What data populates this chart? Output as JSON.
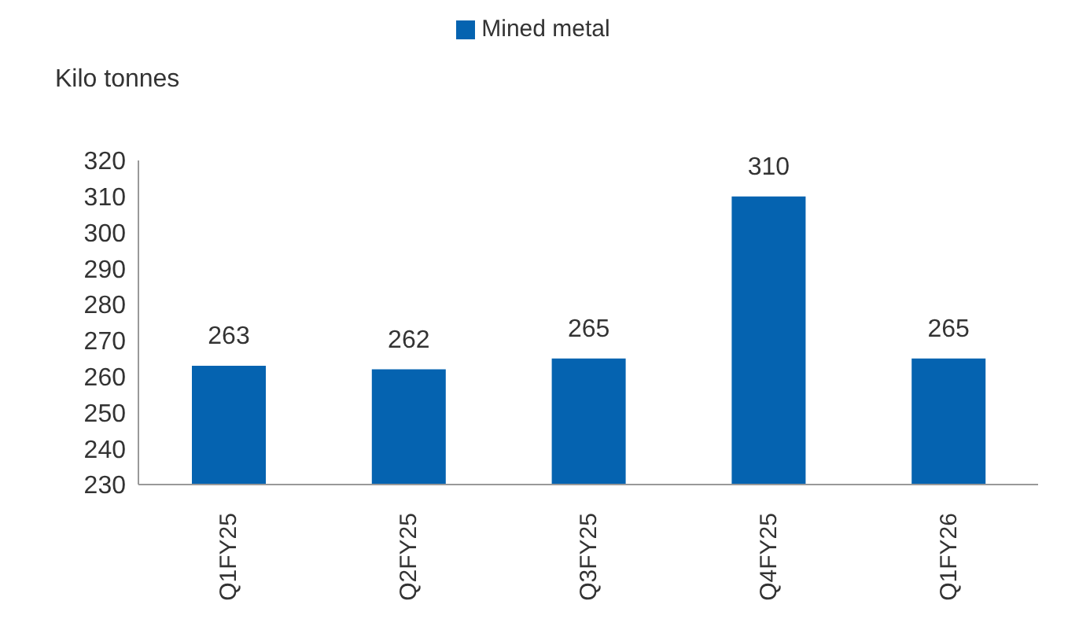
{
  "chart_data": {
    "type": "bar",
    "ylabel": "Kilo tonnes",
    "categories": [
      "Q1FY25",
      "Q2FY25",
      "Q3FY25",
      "Q4FY25",
      "Q1FY26"
    ],
    "series": [
      {
        "name": "Mined metal",
        "color": "#0563b0",
        "values": [
          263,
          262,
          265,
          310,
          265
        ]
      }
    ],
    "ylim": [
      230,
      320
    ],
    "yticks": [
      230,
      240,
      250,
      260,
      270,
      280,
      290,
      300,
      310,
      320
    ],
    "data_labels": true,
    "legend": "top"
  }
}
